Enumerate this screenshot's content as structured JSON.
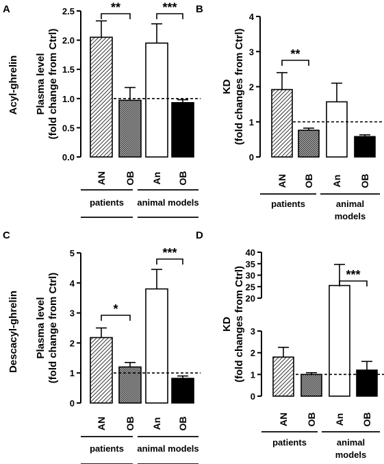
{
  "row_labels": [
    "Acyl-ghrelin",
    "Descacyl-ghrelin"
  ],
  "chart_data": [
    {
      "type": "bar",
      "panel": "A",
      "ylabel": [
        "Plasma level",
        "(fold change from Ctrl)"
      ],
      "ylim": [
        0,
        2.5
      ],
      "yticks": [
        "0.0",
        "0.5",
        "1.0",
        "1.5",
        "2.0",
        "2.5"
      ],
      "categories": [
        "AN",
        "OB",
        "An",
        "OB"
      ],
      "values": [
        2.05,
        0.97,
        1.95,
        0.93
      ],
      "errors": [
        0.28,
        0.22,
        0.33,
        0.05
      ],
      "reference_line": 1.0,
      "groups": [
        {
          "label": [
            "patients"
          ]
        },
        {
          "label": [
            "animal models"
          ]
        }
      ],
      "significance": [
        "**",
        "***"
      ]
    },
    {
      "type": "bar",
      "panel": "B",
      "ylabel": [
        "KD",
        "(fold changes from Ctrl)"
      ],
      "ylim": [
        0,
        4
      ],
      "yticks": [
        "0",
        "1",
        "2",
        "3",
        "4"
      ],
      "categories": [
        "AN",
        "OB",
        "An",
        "OB"
      ],
      "values": [
        1.92,
        0.76,
        1.57,
        0.58
      ],
      "errors": [
        0.48,
        0.06,
        0.53,
        0.05
      ],
      "reference_line": 1.0,
      "groups": [
        {
          "label": [
            "patients"
          ]
        },
        {
          "label": [
            "animal",
            "models"
          ]
        }
      ],
      "significance": [
        "**"
      ]
    },
    {
      "type": "bar",
      "panel": "C",
      "ylabel": [
        "Plasma level",
        "(fold change from Ctrl)"
      ],
      "ylim": [
        0,
        5
      ],
      "yticks": [
        "0",
        "1",
        "2",
        "3",
        "4",
        "5"
      ],
      "categories": [
        "AN",
        "OB",
        "An",
        "OB"
      ],
      "values": [
        2.18,
        1.2,
        3.8,
        0.82
      ],
      "errors": [
        0.32,
        0.15,
        0.65,
        0.08
      ],
      "reference_line": 1.0,
      "groups": [
        {
          "label": [
            "patients"
          ]
        },
        {
          "label": [
            "animal models"
          ]
        }
      ],
      "significance": [
        "*",
        "***"
      ]
    },
    {
      "type": "bar",
      "panel": "D",
      "ylabel": [
        "KD",
        "(fold changes from Ctrl)"
      ],
      "broken_axis": {
        "lower": [
          0,
          3
        ],
        "upper": [
          20,
          40
        ]
      },
      "yticks_lower": [
        "0",
        "1",
        "2",
        "3"
      ],
      "yticks_upper": [
        "20",
        "25",
        "30",
        "35",
        "40"
      ],
      "categories": [
        "AN",
        "OB",
        "An",
        "OB"
      ],
      "values": [
        1.8,
        1.0,
        25.5,
        1.2
      ],
      "errors": [
        0.45,
        0.08,
        9.2,
        0.4
      ],
      "reference_line": 1.0,
      "groups": [
        {
          "label": [
            "patients"
          ]
        },
        {
          "label": [
            "animal",
            "models"
          ]
        }
      ],
      "significance": [
        "***"
      ]
    }
  ]
}
